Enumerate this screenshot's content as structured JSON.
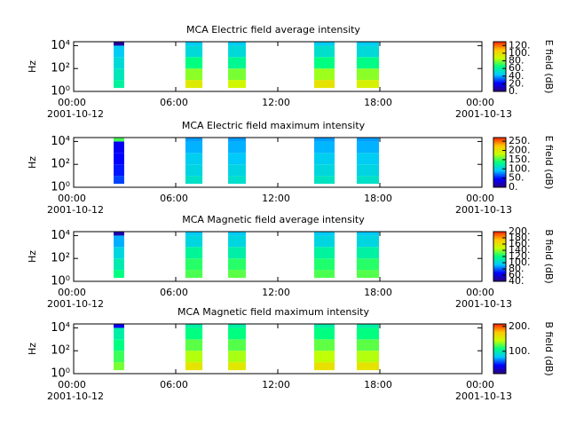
{
  "chart_data": [
    {
      "type": "heatmap",
      "title": "MCA  Electric field average intensity",
      "y_label": "Hz",
      "colorbar_label": "E field (dB)",
      "xlim": [
        0,
        24
      ],
      "xticks": [
        {
          "value": 0,
          "label": "00:00"
        },
        {
          "value": 6,
          "label": "06:00"
        },
        {
          "value": 12,
          "label": "12:00"
        },
        {
          "value": 18,
          "label": "18:00"
        },
        {
          "value": 24,
          "label": "00:00"
        }
      ],
      "date_labels": [
        {
          "value": 0,
          "label": "2001-10-12"
        },
        {
          "value": 24,
          "label": "2001-10-13"
        }
      ],
      "ylim": [
        1,
        22000
      ],
      "log_y": true,
      "yticks": [
        {
          "value": 1,
          "label": "10⁰"
        },
        {
          "value": 100,
          "label": "10²"
        },
        {
          "value": 10000,
          "label": "10⁴"
        }
      ],
      "clim": [
        0,
        130
      ],
      "cticks": [
        {
          "value": 0,
          "label": "0."
        },
        {
          "value": 20,
          "label": "20."
        },
        {
          "value": 40,
          "label": "40."
        },
        {
          "value": 60,
          "label": "60."
        },
        {
          "value": 80,
          "label": "80."
        },
        {
          "value": 100,
          "label": "100."
        },
        {
          "value": 120,
          "label": "120."
        }
      ],
      "colormap": [
        "#2a0080",
        "#0000ff",
        "#00c8ff",
        "#00ff80",
        "#c8ff00",
        "#ffc800",
        "#ff2000"
      ],
      "freq_bins": [
        2,
        10,
        100,
        1000,
        10000,
        20000
      ],
      "segments": [
        [
          2.35,
          2.97
        ],
        [
          6.57,
          7.57
        ],
        [
          9.08,
          10.12
        ],
        [
          14.14,
          15.34
        ],
        [
          16.64,
          17.95
        ]
      ],
      "values": [
        [
          60,
          55,
          50,
          45,
          5
        ],
        [
          95,
          80,
          65,
          50,
          45
        ],
        [
          90,
          78,
          62,
          50,
          45
        ],
        [
          98,
          82,
          65,
          52,
          45
        ],
        [
          92,
          80,
          64,
          50,
          45
        ]
      ]
    },
    {
      "type": "heatmap",
      "title": "MCA  Electric field maximum intensity",
      "y_label": "Hz",
      "colorbar_label": "E field (dB)",
      "xlim": [
        0,
        24
      ],
      "xticks": [
        {
          "value": 0,
          "label": "00:00"
        },
        {
          "value": 6,
          "label": "06:00"
        },
        {
          "value": 12,
          "label": "12:00"
        },
        {
          "value": 18,
          "label": "18:00"
        },
        {
          "value": 24,
          "label": "00:00"
        }
      ],
      "date_labels": [
        {
          "value": 0,
          "label": "2001-10-12"
        },
        {
          "value": 24,
          "label": "2001-10-13"
        }
      ],
      "ylim": [
        1,
        22000
      ],
      "log_y": true,
      "yticks": [
        {
          "value": 1,
          "label": "10⁰"
        },
        {
          "value": 100,
          "label": "10²"
        },
        {
          "value": 10000,
          "label": "10⁴"
        }
      ],
      "clim": [
        0,
        270
      ],
      "cticks": [
        {
          "value": 0,
          "label": "0."
        },
        {
          "value": 50,
          "label": "50."
        },
        {
          "value": 100,
          "label": "100."
        },
        {
          "value": 150,
          "label": "150."
        },
        {
          "value": 200,
          "label": "200."
        },
        {
          "value": 250,
          "label": "250."
        }
      ],
      "colormap": [
        "#2a0080",
        "#0000ff",
        "#00c8ff",
        "#00ff80",
        "#c8ff00",
        "#ffc800",
        "#ff2000"
      ],
      "freq_bins": [
        2,
        10,
        100,
        1000,
        10000,
        20000
      ],
      "segments": [
        [
          2.35,
          2.97
        ],
        [
          6.57,
          7.57
        ],
        [
          9.08,
          10.12
        ],
        [
          14.14,
          15.34
        ],
        [
          16.64,
          17.95
        ]
      ],
      "values": [
        [
          60,
          50,
          45,
          40,
          150
        ],
        [
          110,
          100,
          95,
          85,
          80
        ],
        [
          108,
          100,
          92,
          85,
          80
        ],
        [
          112,
          102,
          95,
          86,
          80
        ],
        [
          110,
          100,
          94,
          85,
          80
        ]
      ]
    },
    {
      "type": "heatmap",
      "title": "MCA  Magnetic field average intensity",
      "y_label": "Hz",
      "colorbar_label": "B field (dB)",
      "xlim": [
        0,
        24
      ],
      "xticks": [
        {
          "value": 0,
          "label": "00:00"
        },
        {
          "value": 6,
          "label": "06:00"
        },
        {
          "value": 12,
          "label": "12:00"
        },
        {
          "value": 18,
          "label": "18:00"
        },
        {
          "value": 24,
          "label": "00:00"
        }
      ],
      "date_labels": [
        {
          "value": 0,
          "label": "2001-10-12"
        },
        {
          "value": 24,
          "label": "2001-10-13"
        }
      ],
      "ylim": [
        1,
        22000
      ],
      "log_y": true,
      "yticks": [
        {
          "value": 1,
          "label": "10⁰"
        },
        {
          "value": 100,
          "label": "10²"
        },
        {
          "value": 10000,
          "label": "10⁴"
        }
      ],
      "clim": [
        40,
        200
      ],
      "cticks": [
        {
          "value": 40,
          "label": "40."
        },
        {
          "value": 60,
          "label": "60."
        },
        {
          "value": 80,
          "label": "80."
        },
        {
          "value": 100,
          "label": "100."
        },
        {
          "value": 120,
          "label": "120."
        },
        {
          "value": 140,
          "label": "140."
        },
        {
          "value": 160,
          "label": "160."
        },
        {
          "value": 180,
          "label": "180."
        },
        {
          "value": 200,
          "label": "200."
        }
      ],
      "colormap": [
        "#2a0080",
        "#0000ff",
        "#00c8ff",
        "#00ff80",
        "#c8ff00",
        "#ffc800",
        "#ff2000"
      ],
      "freq_bins": [
        2,
        10,
        100,
        1000,
        10000,
        20000
      ],
      "segments": [
        [
          2.35,
          2.97
        ],
        [
          6.57,
          7.57
        ],
        [
          9.08,
          10.12
        ],
        [
          14.14,
          15.34
        ],
        [
          16.64,
          17.95
        ]
      ],
      "values": [
        [
          120,
          110,
          100,
          90,
          50
        ],
        [
          130,
          125,
          115,
          100,
          95
        ],
        [
          132,
          125,
          112,
          100,
          95
        ],
        [
          130,
          124,
          114,
          100,
          95
        ],
        [
          131,
          125,
          113,
          100,
          95
        ]
      ]
    },
    {
      "type": "heatmap",
      "title": "MCA  Magnetic field maximum intensity",
      "y_label": "Hz",
      "colorbar_label": "B field (dB)",
      "xlim": [
        0,
        24
      ],
      "xticks": [
        {
          "value": 0,
          "label": "00:00"
        },
        {
          "value": 6,
          "label": "06:00"
        },
        {
          "value": 12,
          "label": "12:00"
        },
        {
          "value": 18,
          "label": "18:00"
        },
        {
          "value": 24,
          "label": "00:00"
        }
      ],
      "date_labels": [
        {
          "value": 0,
          "label": "2001-10-12"
        },
        {
          "value": 24,
          "label": "2001-10-13"
        }
      ],
      "ylim": [
        1,
        22000
      ],
      "log_y": true,
      "yticks": [
        {
          "value": 1,
          "label": "10⁰"
        },
        {
          "value": 100,
          "label": "10²"
        },
        {
          "value": 10000,
          "label": "10⁴"
        }
      ],
      "clim": [
        10,
        210
      ],
      "cticks": [
        {
          "value": 100,
          "label": "100."
        },
        {
          "value": 200,
          "label": "200."
        }
      ],
      "colormap": [
        "#2a0080",
        "#0000ff",
        "#00c8ff",
        "#00ff80",
        "#c8ff00",
        "#ffc800",
        "#ff2000"
      ],
      "freq_bins": [
        2,
        10,
        100,
        1000,
        10000,
        20000
      ],
      "segments": [
        [
          2.35,
          2.97
        ],
        [
          6.57,
          7.57
        ],
        [
          9.08,
          10.12
        ],
        [
          14.14,
          15.34
        ],
        [
          16.64,
          17.95
        ]
      ],
      "values": [
        [
          130,
          120,
          110,
          100,
          40
        ],
        [
          160,
          140,
          125,
          110,
          100
        ],
        [
          158,
          138,
          124,
          110,
          100
        ],
        [
          162,
          142,
          126,
          110,
          100
        ],
        [
          160,
          140,
          125,
          110,
          100
        ]
      ]
    }
  ]
}
